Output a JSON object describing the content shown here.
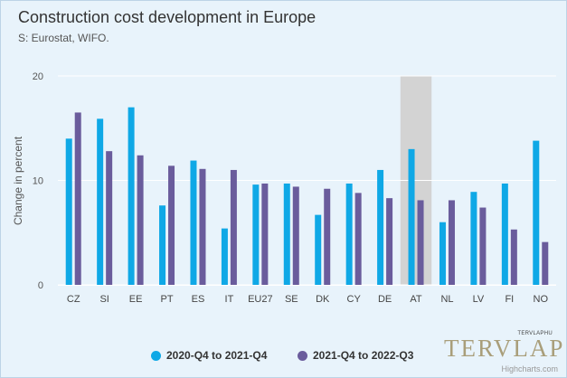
{
  "title": "Construction cost development in Europe",
  "subtitle": "S: Eurostat, WIFO.",
  "credits": "Highcharts.com",
  "brand": {
    "small": "TERVLAPHU",
    "mark": "TERVLAP"
  },
  "colors": {
    "series1": "#0fa8e6",
    "series2": "#6a5c9c",
    "highlight": "#d3d3d3",
    "background": "#e8f3fb",
    "grid": "#ffffff"
  },
  "chart_data": {
    "type": "bar",
    "ylabel": "Change in percent",
    "ylim": [
      0,
      20
    ],
    "yticks": [
      0,
      10,
      20
    ],
    "grid": true,
    "legend_position": "bottom",
    "highlight_category": "AT",
    "categories": [
      "CZ",
      "SI",
      "EE",
      "PT",
      "ES",
      "IT",
      "EU27",
      "SE",
      "DK",
      "CY",
      "DE",
      "AT",
      "NL",
      "LV",
      "FI",
      "NO"
    ],
    "series": [
      {
        "name": "2020-Q4 to 2021-Q4",
        "values": [
          14.0,
          15.9,
          17.0,
          7.6,
          11.9,
          5.4,
          9.6,
          9.7,
          6.7,
          9.7,
          11.0,
          13.0,
          6.0,
          8.9,
          9.7,
          13.8
        ]
      },
      {
        "name": "2021-Q4 to 2022-Q3",
        "values": [
          16.5,
          12.8,
          12.4,
          11.4,
          11.1,
          11.0,
          9.7,
          9.4,
          9.2,
          8.8,
          8.3,
          8.1,
          8.1,
          7.4,
          5.3,
          4.1
        ]
      }
    ]
  }
}
